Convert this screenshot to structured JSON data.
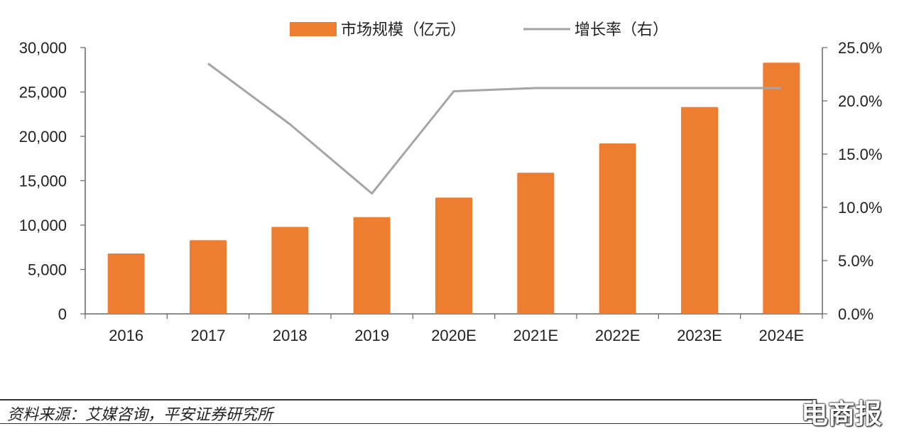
{
  "chart_data": {
    "type": "bar",
    "categories": [
      "2016",
      "2017",
      "2018",
      "2019",
      "2020E",
      "2021E",
      "2022E",
      "2023E",
      "2024E"
    ],
    "series": [
      {
        "name": "市场规模（亿元）",
        "type": "bar",
        "axis": "left",
        "values": [
          6800,
          8300,
          9800,
          10900,
          13100,
          15900,
          19200,
          23300,
          28300
        ]
      },
      {
        "name": "增长率（右）",
        "type": "line",
        "axis": "right",
        "values": [
          null,
          23.5,
          17.8,
          11.3,
          20.9,
          21.2,
          21.2,
          21.2,
          21.2
        ]
      }
    ],
    "y_left": {
      "min": 0,
      "max": 30000,
      "ticks": [
        "0",
        "5,000",
        "10,000",
        "15,000",
        "20,000",
        "25,000",
        "30,000"
      ]
    },
    "y_right": {
      "min": 0,
      "max": 25,
      "ticks": [
        "0.0%",
        "5.0%",
        "10.0%",
        "15.0%",
        "20.0%",
        "25.0%"
      ]
    },
    "legend_position": "top",
    "colors": {
      "bar": "#ED7D31",
      "line": "#A5A5A5",
      "axis": "#666666"
    },
    "grid": false
  },
  "source": "资料来源：艾媒咨询，平安证券研究所",
  "watermark": "电商报"
}
